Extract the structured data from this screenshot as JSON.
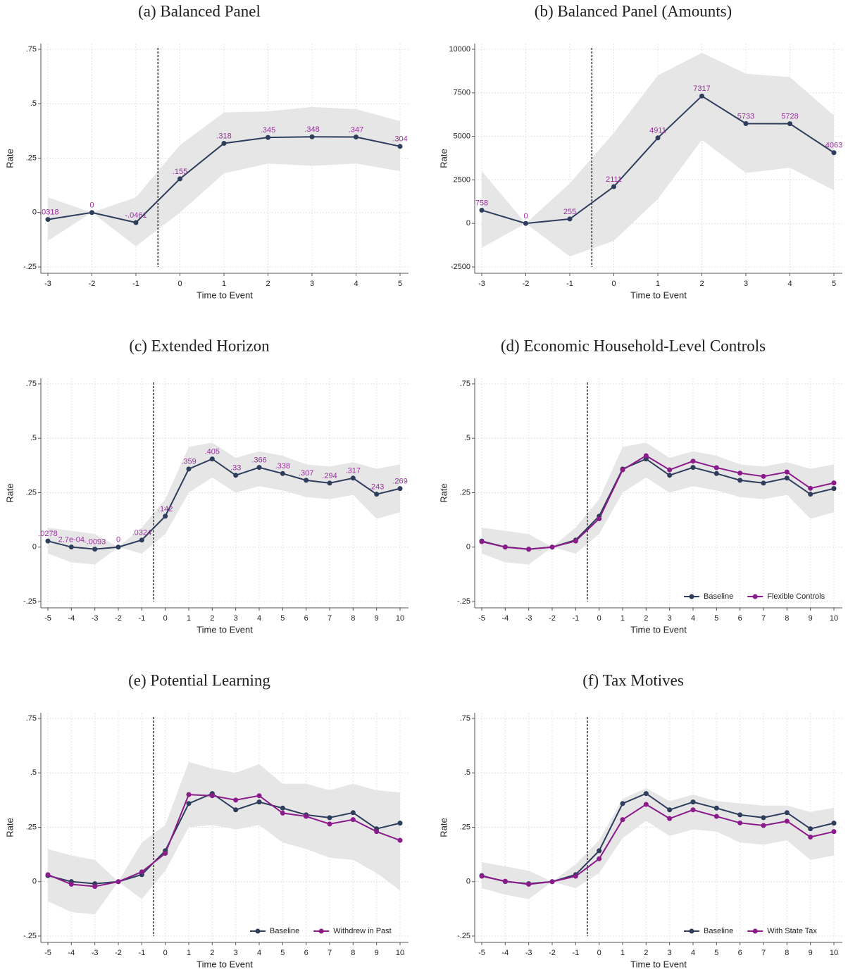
{
  "chart_data": [
    {
      "type": "line",
      "title": "(a) Balanced Panel",
      "xlabel": "Time to Event",
      "ylabel": "Rate",
      "x": [
        -3,
        -2,
        -1,
        0,
        1,
        2,
        3,
        4,
        5
      ],
      "values": [
        -0.0318,
        0,
        -0.0461,
        0.155,
        0.318,
        0.345,
        0.348,
        0.347,
        0.304
      ],
      "value_labels": [
        "-.0318",
        "0",
        "-.0461",
        ".155",
        ".318",
        ".345",
        ".348",
        ".347",
        ".304"
      ],
      "color": "#2e3d5c",
      "label_color": "#9b2fa0",
      "band": {
        "lower": [
          -0.13,
          0,
          -0.155,
          0.0,
          0.18,
          0.225,
          0.215,
          0.225,
          0.19
        ],
        "upper": [
          0.07,
          0,
          0.07,
          0.31,
          0.46,
          0.465,
          0.485,
          0.475,
          0.42
        ],
        "color": "#e6e6e6"
      },
      "event_line": -0.5,
      "xlim": [
        -3,
        5
      ],
      "xticks": [
        -3,
        -2,
        -1,
        0,
        1,
        2,
        3,
        4,
        5
      ],
      "ylim": [
        -0.25,
        0.75
      ],
      "yticks": [
        {
          "value": -0.25,
          "label": "-.25"
        },
        0,
        {
          "value": 0.25,
          "label": ".25"
        },
        {
          "value": 0.5,
          "label": ".5"
        },
        {
          "value": 0.75,
          "label": ".75"
        }
      ],
      "grid": true
    },
    {
      "type": "line",
      "title": "(b) Balanced Panel (Amounts)",
      "xlabel": "Time to Event",
      "ylabel": "Rate",
      "x": [
        -3,
        -2,
        -1,
        0,
        1,
        2,
        3,
        4,
        5
      ],
      "values": [
        758,
        0,
        255,
        2111,
        4911,
        7317,
        5733,
        5728,
        4063
      ],
      "color": "#2e3d5c",
      "label_color": "#9b2fa0",
      "band": {
        "lower": [
          -1400,
          0,
          -1900,
          -1000,
          1400,
          4800,
          2900,
          3200,
          1900
        ],
        "upper": [
          3000,
          0,
          2300,
          5200,
          8500,
          9800,
          8600,
          8400,
          6200
        ],
        "color": "#e6e6e6"
      },
      "event_line": -0.5,
      "xlim": [
        -3,
        5
      ],
      "xticks": [
        -3,
        -2,
        -1,
        0,
        1,
        2,
        3,
        4,
        5
      ],
      "ylim": [
        -2500,
        10000
      ],
      "yticks": [
        -2500,
        0,
        2500,
        5000,
        7500,
        10000
      ],
      "grid": true
    },
    {
      "type": "line",
      "title": "(c) Extended Horizon",
      "xlabel": "Time to Event",
      "ylabel": "Rate",
      "x": [
        -5,
        -4,
        -3,
        -2,
        -1,
        0,
        1,
        2,
        3,
        4,
        5,
        6,
        7,
        8,
        9,
        10
      ],
      "values": [
        0.0278,
        0.00027,
        -0.0093,
        0,
        0.0324,
        0.142,
        0.359,
        0.405,
        0.33,
        0.366,
        0.338,
        0.307,
        0.294,
        0.317,
        0.243,
        0.269
      ],
      "value_labels": [
        ".0278",
        "2.7e-04",
        "-.0093",
        "0",
        ".0324",
        ".142",
        ".359",
        ".405",
        ".33",
        ".366",
        ".338",
        ".307",
        ".294",
        ".317",
        ".243",
        ".269"
      ],
      "color": "#2e3d5c",
      "label_color": "#9b2fa0",
      "band": {
        "lower": [
          -0.03,
          -0.07,
          -0.08,
          0,
          -0.03,
          0.06,
          0.25,
          0.32,
          0.25,
          0.28,
          0.26,
          0.23,
          0.22,
          0.24,
          0.13,
          0.16
        ],
        "upper": [
          0.09,
          0.075,
          0.06,
          0,
          0.09,
          0.22,
          0.46,
          0.48,
          0.41,
          0.44,
          0.42,
          0.38,
          0.37,
          0.39,
          0.36,
          0.38
        ],
        "color": "#e6e6e6"
      },
      "event_line": -0.5,
      "xlim": [
        -5,
        10
      ],
      "xticks": [
        -5,
        -4,
        -3,
        -2,
        -1,
        0,
        1,
        2,
        3,
        4,
        5,
        6,
        7,
        8,
        9,
        10
      ],
      "ylim": [
        -0.25,
        0.75
      ],
      "yticks": [
        {
          "value": -0.25,
          "label": "-.25"
        },
        0,
        {
          "value": 0.25,
          "label": ".25"
        },
        {
          "value": 0.5,
          "label": ".5"
        },
        {
          "value": 0.75,
          "label": ".75"
        }
      ],
      "grid": true
    },
    {
      "type": "line",
      "title": "(d) Economic Household-Level Controls",
      "xlabel": "Time to Event",
      "ylabel": "Rate",
      "x": [
        -5,
        -4,
        -3,
        -2,
        -1,
        0,
        1,
        2,
        3,
        4,
        5,
        6,
        7,
        8,
        9,
        10
      ],
      "series": [
        {
          "name": "Baseline",
          "color": "#2e3d5c",
          "values": [
            0.0278,
            0.00027,
            -0.0093,
            0,
            0.0324,
            0.142,
            0.359,
            0.405,
            0.33,
            0.366,
            0.338,
            0.307,
            0.294,
            0.317,
            0.243,
            0.269
          ]
        },
        {
          "name": "Flexible Controls",
          "color": "#8b1a8b",
          "values": [
            0.025,
            0.0,
            -0.01,
            0,
            0.028,
            0.13,
            0.355,
            0.42,
            0.355,
            0.395,
            0.365,
            0.34,
            0.325,
            0.345,
            0.27,
            0.295
          ]
        }
      ],
      "band": {
        "lower": [
          -0.03,
          -0.07,
          -0.08,
          0,
          -0.03,
          0.06,
          0.25,
          0.32,
          0.25,
          0.28,
          0.26,
          0.23,
          0.22,
          0.24,
          0.13,
          0.16
        ],
        "upper": [
          0.09,
          0.075,
          0.06,
          0,
          0.09,
          0.22,
          0.46,
          0.48,
          0.41,
          0.44,
          0.42,
          0.38,
          0.37,
          0.39,
          0.36,
          0.38
        ],
        "color": "#e6e6e6"
      },
      "event_line": -0.5,
      "xlim": [
        -5,
        10
      ],
      "xticks": [
        -5,
        -4,
        -3,
        -2,
        -1,
        0,
        1,
        2,
        3,
        4,
        5,
        6,
        7,
        8,
        9,
        10
      ],
      "ylim": [
        -0.25,
        0.75
      ],
      "yticks": [
        {
          "value": -0.25,
          "label": "-.25"
        },
        0,
        {
          "value": 0.25,
          "label": ".25"
        },
        {
          "value": 0.5,
          "label": ".5"
        },
        {
          "value": 0.75,
          "label": ".75"
        }
      ],
      "grid": true,
      "legend": "lower right"
    },
    {
      "type": "line",
      "title": "(e) Potential Learning",
      "xlabel": "Time to Event",
      "ylabel": "Rate",
      "x": [
        -5,
        -4,
        -3,
        -2,
        -1,
        0,
        1,
        2,
        3,
        4,
        5,
        6,
        7,
        8,
        9,
        10
      ],
      "series": [
        {
          "name": "Baseline",
          "color": "#2e3d5c",
          "values": [
            0.0278,
            0.00027,
            -0.0093,
            0,
            0.0324,
            0.142,
            0.359,
            0.405,
            0.33,
            0.366,
            0.338,
            0.307,
            0.294,
            0.317,
            0.243,
            0.269
          ]
        },
        {
          "name": "Withdrew in Past",
          "color": "#8b1a8b",
          "values": [
            0.032,
            -0.012,
            -0.022,
            0,
            0.045,
            0.13,
            0.4,
            0.395,
            0.375,
            0.395,
            0.315,
            0.3,
            0.265,
            0.285,
            0.23,
            0.19
          ]
        }
      ],
      "band": {
        "lower": [
          -0.09,
          -0.14,
          -0.15,
          0,
          -0.08,
          0.05,
          0.25,
          0.26,
          0.24,
          0.26,
          0.18,
          0.15,
          0.11,
          0.1,
          0.04,
          -0.04
        ],
        "upper": [
          0.15,
          0.12,
          0.1,
          0,
          0.18,
          0.26,
          0.55,
          0.52,
          0.5,
          0.54,
          0.45,
          0.45,
          0.42,
          0.45,
          0.42,
          0.41
        ],
        "color": "#e6e6e6"
      },
      "event_line": -0.5,
      "xlim": [
        -5,
        10
      ],
      "xticks": [
        -5,
        -4,
        -3,
        -2,
        -1,
        0,
        1,
        2,
        3,
        4,
        5,
        6,
        7,
        8,
        9,
        10
      ],
      "ylim": [
        -0.25,
        0.75
      ],
      "yticks": [
        {
          "value": -0.25,
          "label": "-.25"
        },
        0,
        {
          "value": 0.25,
          "label": ".25"
        },
        {
          "value": 0.5,
          "label": ".5"
        },
        {
          "value": 0.75,
          "label": ".75"
        }
      ],
      "grid": true,
      "legend": "lower right"
    },
    {
      "type": "line",
      "title": "(f) Tax Motives",
      "xlabel": "Time to Event",
      "ylabel": "Rate",
      "x": [
        -5,
        -4,
        -3,
        -2,
        -1,
        0,
        1,
        2,
        3,
        4,
        5,
        6,
        7,
        8,
        9,
        10
      ],
      "series": [
        {
          "name": "Baseline",
          "color": "#2e3d5c",
          "values": [
            0.0278,
            0.00027,
            -0.0093,
            0,
            0.0324,
            0.142,
            0.359,
            0.405,
            0.33,
            0.366,
            0.338,
            0.307,
            0.294,
            0.317,
            0.243,
            0.269
          ]
        },
        {
          "name": "With State Tax",
          "color": "#8b1a8b",
          "values": [
            0.025,
            0.002,
            -0.012,
            0,
            0.025,
            0.105,
            0.285,
            0.355,
            0.29,
            0.33,
            0.3,
            0.27,
            0.258,
            0.278,
            0.205,
            0.23
          ]
        }
      ],
      "band": {
        "lower": [
          -0.03,
          -0.06,
          -0.08,
          0,
          -0.03,
          0.04,
          0.2,
          0.28,
          0.21,
          0.24,
          0.23,
          0.18,
          0.17,
          0.19,
          0.1,
          0.12
        ],
        "upper": [
          0.09,
          0.07,
          0.05,
          0,
          0.08,
          0.19,
          0.38,
          0.43,
          0.37,
          0.4,
          0.37,
          0.36,
          0.35,
          0.35,
          0.32,
          0.34
        ],
        "color": "#e6e6e6"
      },
      "event_line": -0.5,
      "xlim": [
        -5,
        10
      ],
      "xticks": [
        -5,
        -4,
        -3,
        -2,
        -1,
        0,
        1,
        2,
        3,
        4,
        5,
        6,
        7,
        8,
        9,
        10
      ],
      "ylim": [
        -0.25,
        0.75
      ],
      "yticks": [
        {
          "value": -0.25,
          "label": "-.25"
        },
        0,
        {
          "value": 0.25,
          "label": ".25"
        },
        {
          "value": 0.5,
          "label": ".5"
        },
        {
          "value": 0.75,
          "label": ".75"
        }
      ],
      "grid": true,
      "legend": "lower right"
    }
  ]
}
